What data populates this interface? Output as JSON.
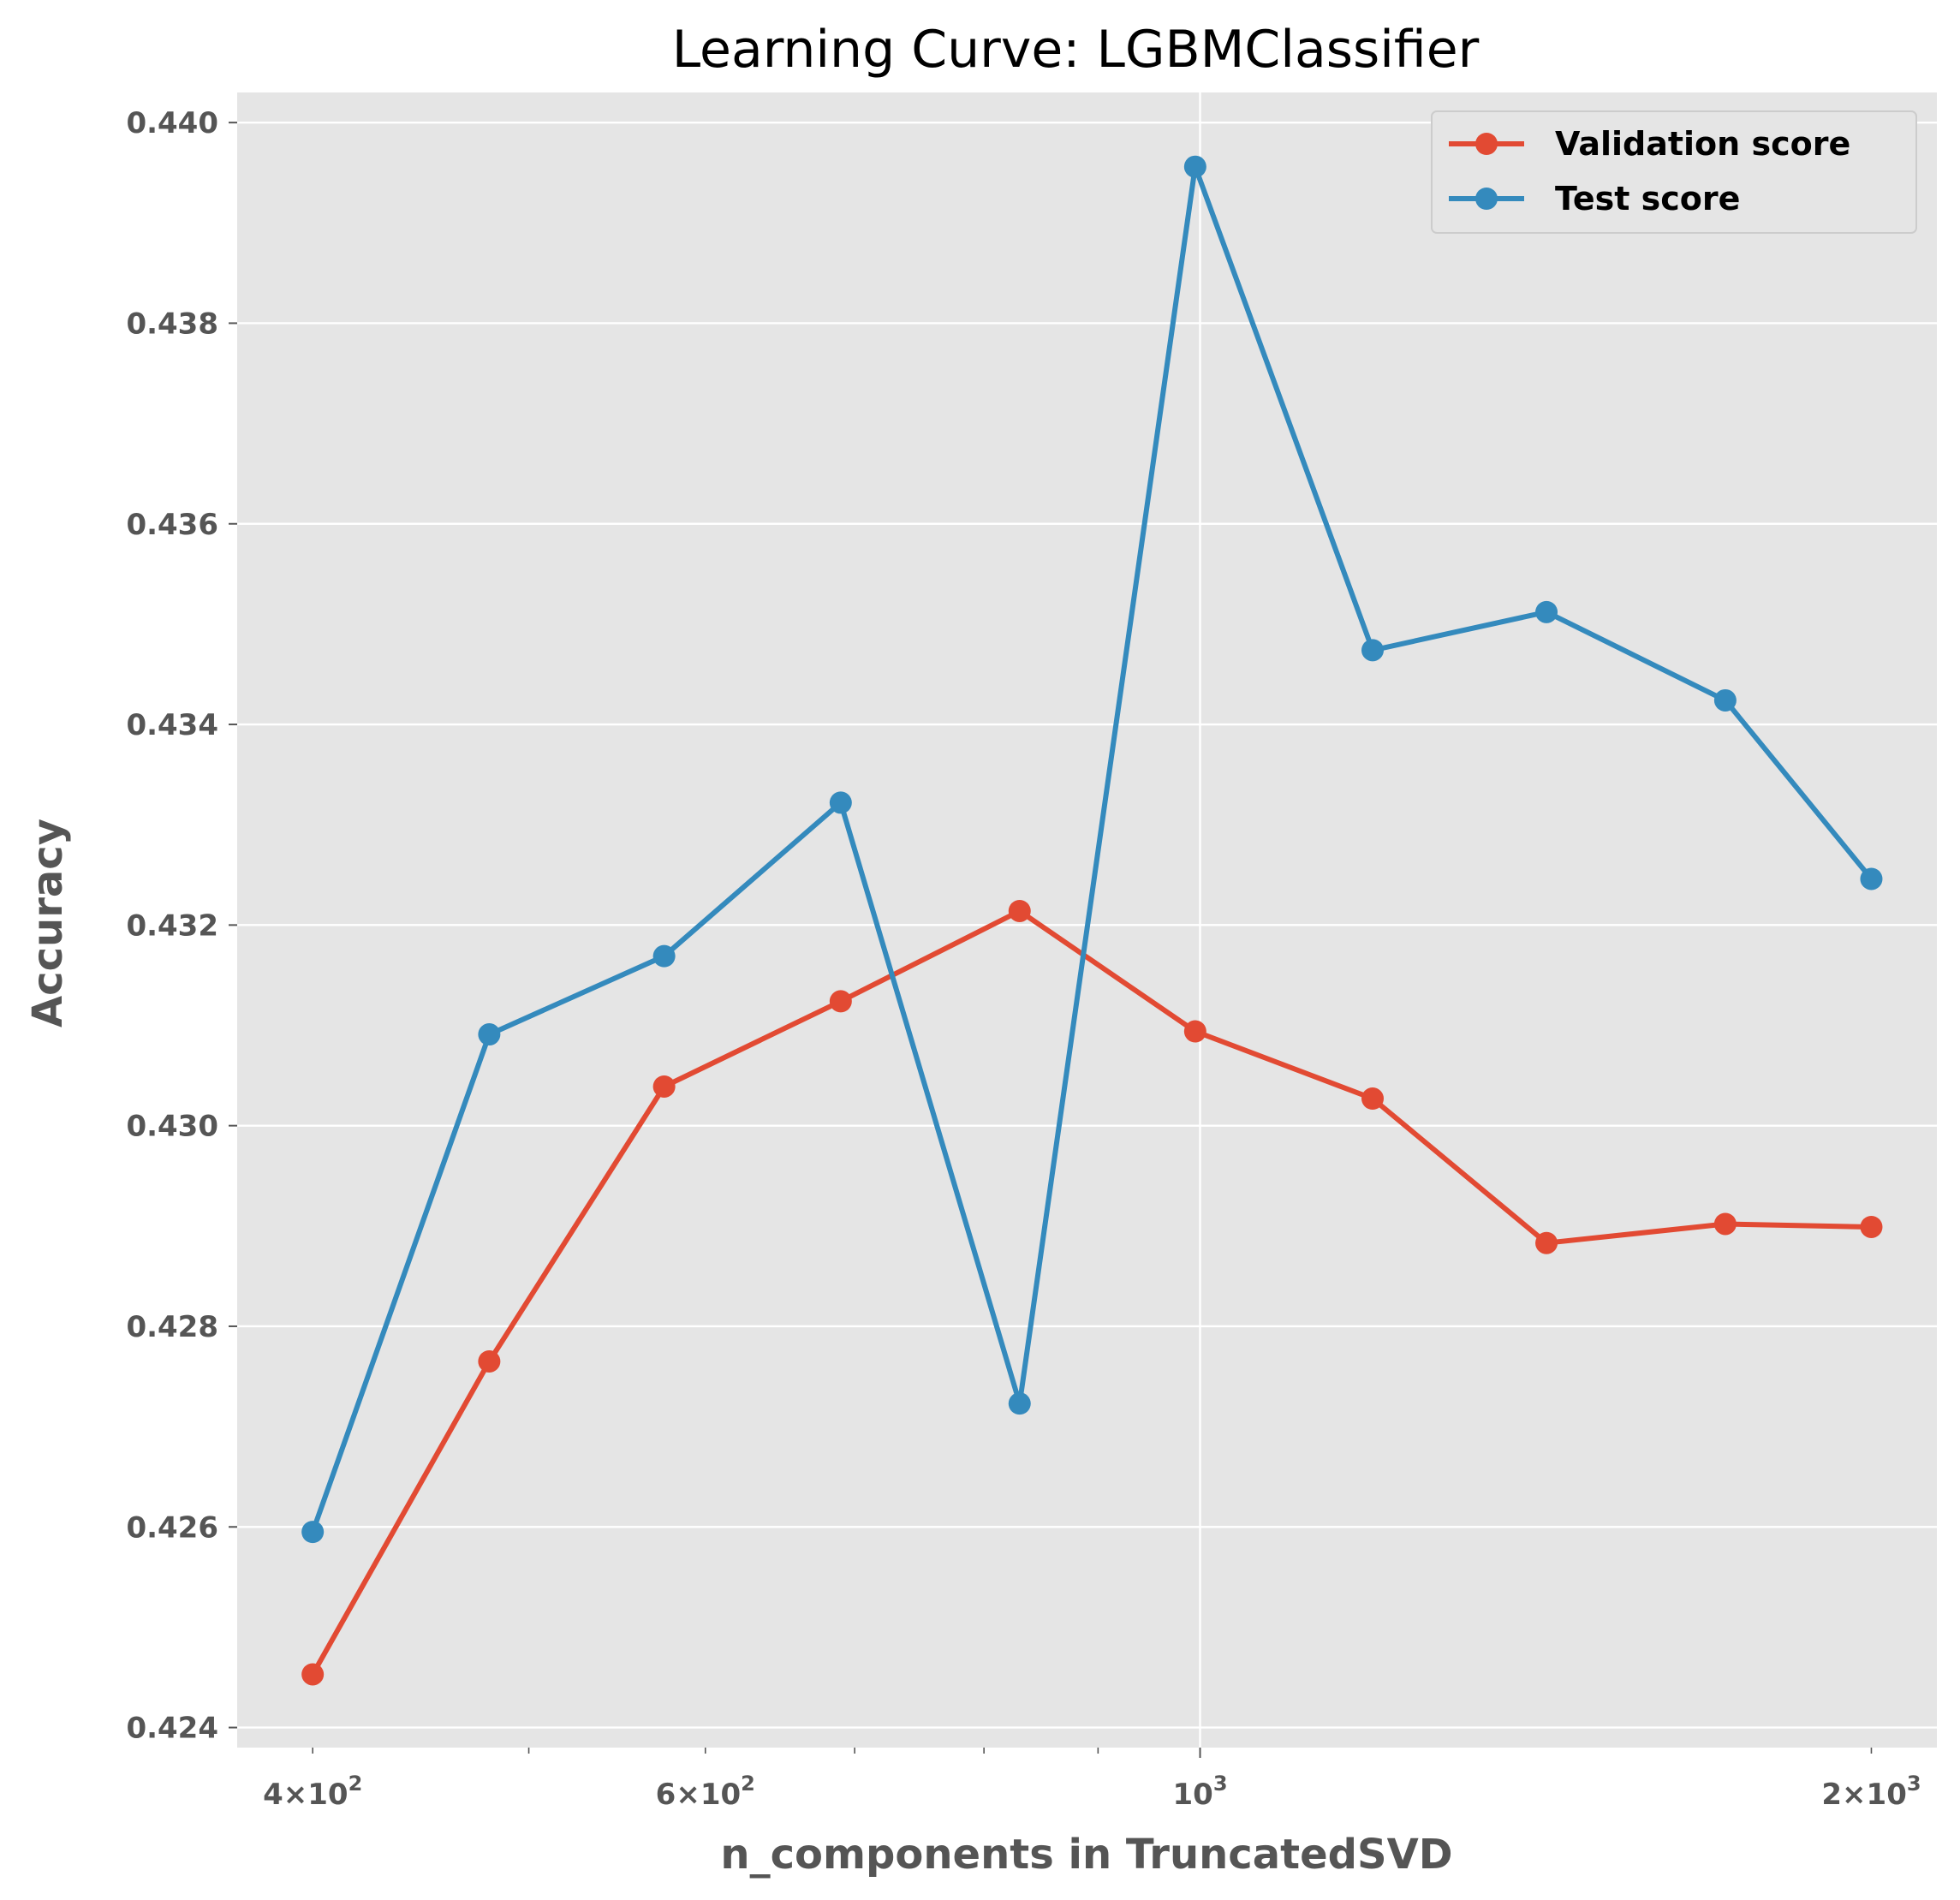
{
  "chart_data": {
    "type": "line",
    "title": "Learning Curve: LGBMClassifier",
    "xlabel": "n_components in TruncatedSVD",
    "ylabel": "Accuracy",
    "xscale": "log",
    "xlim": [
      370,
      2140
    ],
    "ylim": [
      0.4238,
      0.4403
    ],
    "grid": true,
    "legend_position": "top-right",
    "x": [
      400,
      480,
      575,
      690,
      830,
      995,
      1195,
      1430,
      1720,
      2000
    ],
    "series": [
      {
        "name": "Validation score",
        "color": "#E24A33",
        "values": [
          0.42453,
          0.42765,
          0.43039,
          0.43124,
          0.43214,
          0.43094,
          0.43027,
          0.42883,
          0.42902,
          0.42899
        ]
      },
      {
        "name": "Test score",
        "color": "#348ABD",
        "values": [
          0.42595,
          0.43091,
          0.43169,
          0.43322,
          0.42723,
          0.43956,
          0.43474,
          0.43512,
          0.43424,
          0.43246
        ]
      }
    ],
    "y_ticks": [
      {
        "value": 0.424,
        "label": "0.424"
      },
      {
        "value": 0.426,
        "label": "0.426"
      },
      {
        "value": 0.428,
        "label": "0.428"
      },
      {
        "value": 0.43,
        "label": "0.430"
      },
      {
        "value": 0.432,
        "label": "0.432"
      },
      {
        "value": 0.434,
        "label": "0.434"
      },
      {
        "value": 0.436,
        "label": "0.436"
      },
      {
        "value": 0.438,
        "label": "0.438"
      },
      {
        "value": 0.44,
        "label": "0.440"
      }
    ],
    "x_major_ticks": [
      {
        "value": 1000,
        "base": "10",
        "exp": "3"
      }
    ],
    "x_minor_ticks": [
      {
        "value": 400,
        "mantissa": "4",
        "base": "10",
        "exp": "2"
      },
      {
        "value": 500
      },
      {
        "value": 600,
        "mantissa": "6",
        "base": "10",
        "exp": "2"
      },
      {
        "value": 700
      },
      {
        "value": 800
      },
      {
        "value": 900
      },
      {
        "value": 2000,
        "mantissa": "2",
        "base": "10",
        "exp": "3"
      }
    ]
  }
}
